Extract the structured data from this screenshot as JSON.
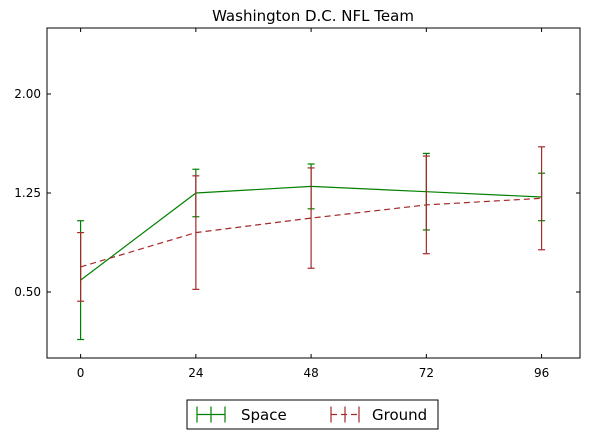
{
  "chart_data": {
    "type": "line",
    "title": "Washington D.C. NFL Team",
    "xlabel": "",
    "ylabel": "",
    "x": [
      0,
      24,
      48,
      72,
      96
    ],
    "x_ticks": [
      "0",
      "24",
      "48",
      "72",
      "96"
    ],
    "xlim": [
      -7,
      104
    ],
    "y_ticks": [
      "0.50",
      "1.25",
      "2.00"
    ],
    "ylim": [
      0.0,
      2.5
    ],
    "grid": false,
    "legend_placement": "bottom-center",
    "series": [
      {
        "name": "Space",
        "color": "#008000",
        "line_style": "solid",
        "values": [
          0.59,
          1.25,
          1.3,
          1.26,
          1.22
        ],
        "error": [
          0.45,
          0.18,
          0.17,
          0.29,
          0.18
        ]
      },
      {
        "name": "Ground",
        "color": "#a52a2a",
        "line_style": "dashed",
        "values": [
          0.69,
          0.95,
          1.06,
          1.16,
          1.21
        ],
        "error": [
          0.26,
          0.43,
          0.38,
          0.37,
          0.39
        ]
      }
    ]
  }
}
